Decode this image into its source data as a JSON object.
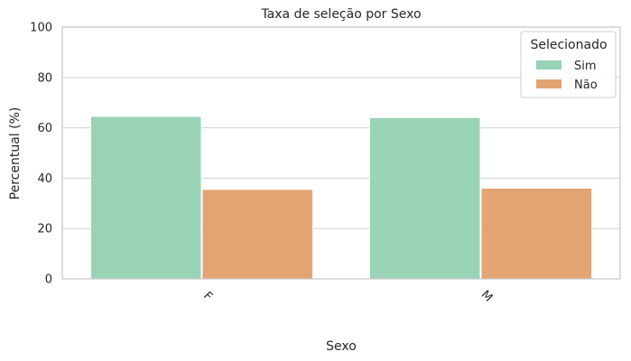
{
  "chart_data": {
    "type": "bar",
    "title": "Taxa de seleção por Sexo",
    "xlabel": "Sexo",
    "ylabel": "Percentual (%)",
    "categories": [
      "F",
      "M"
    ],
    "series": [
      {
        "name": "Sim",
        "values": [
          64.5,
          64.0
        ]
      },
      {
        "name": "Não",
        "values": [
          35.5,
          36.0
        ]
      }
    ],
    "ylim": [
      0,
      100
    ],
    "yticks": [
      "0",
      "20",
      "40",
      "60",
      "80",
      "100"
    ],
    "ytick_values": [
      0,
      20,
      40,
      60,
      80,
      100
    ],
    "grid": "horizontal",
    "legend": {
      "title": "Selecionado",
      "placement": "top-right"
    },
    "xtick_rotation_deg": 45
  },
  "colors": {
    "sim": "#99d3b6",
    "nao": "#e3a473",
    "grid": "#d0d0d0",
    "axes_edge": "#c8c8c8"
  }
}
